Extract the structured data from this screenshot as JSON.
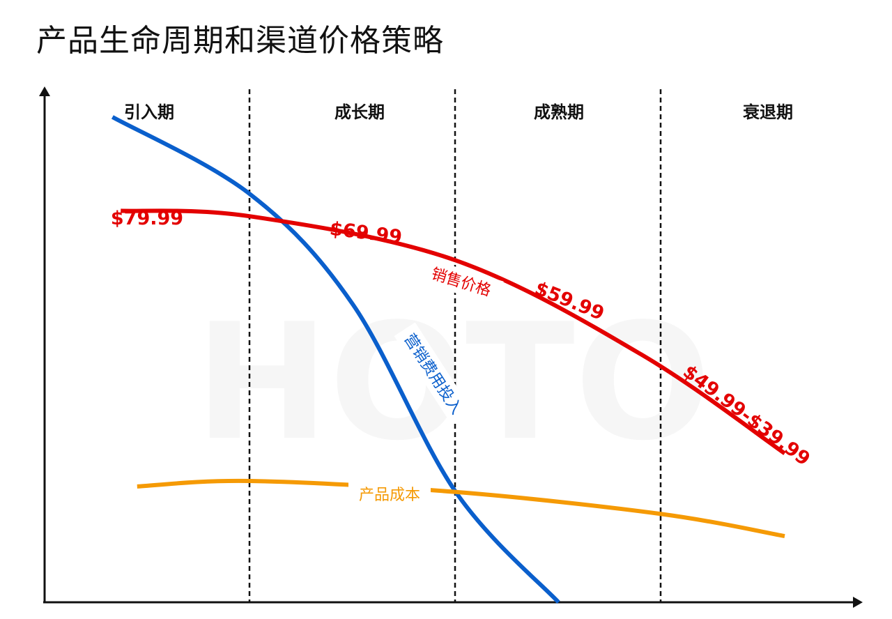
{
  "title": "产品生命周期和渠道价格策略",
  "watermark": "HOTO",
  "colors": {
    "price": "#e30000",
    "marketing": "#0a5fcc",
    "cost": "#f59a05",
    "axis": "#111111",
    "watermark": "#f6f6f6"
  },
  "chart_data": {
    "type": "line",
    "title": "产品生命周期和渠道价格策略",
    "xlabel": "",
    "ylabel": "",
    "grid": false,
    "legend": "none",
    "xlim": [
      0,
      4
    ],
    "ylim": [
      0,
      100
    ],
    "categories": [
      "引入期",
      "成长期",
      "成熟期",
      "衰退期"
    ],
    "series": [
      {
        "name": "销售价格",
        "color": "#e30000",
        "x": [
          0.37,
          1.0,
          2.0,
          2.9,
          3.6
        ],
        "y": [
          71,
          70,
          62,
          45,
          27
        ]
      },
      {
        "name": "营销费用投入",
        "color": "#0a5fcc",
        "x": [
          0.33,
          1.0,
          1.5,
          2.0,
          2.5
        ],
        "y": [
          88,
          74,
          54,
          20,
          0
        ]
      },
      {
        "name": "产品成本",
        "color": "#f59a05",
        "x": [
          0.45,
          1.0,
          2.0,
          3.0,
          3.6
        ],
        "y": [
          21,
          22,
          20,
          16,
          12
        ]
      }
    ],
    "annotations": [
      {
        "series": "销售价格",
        "x": 0.37,
        "text": "$79.99"
      },
      {
        "series": "销售价格",
        "x": 1.5,
        "text": "$69.99"
      },
      {
        "series": "销售价格",
        "x": 2.5,
        "text": "$59.99"
      },
      {
        "series": "销售价格",
        "x": 3.4,
        "text": "$49.99-$39.99"
      }
    ]
  }
}
